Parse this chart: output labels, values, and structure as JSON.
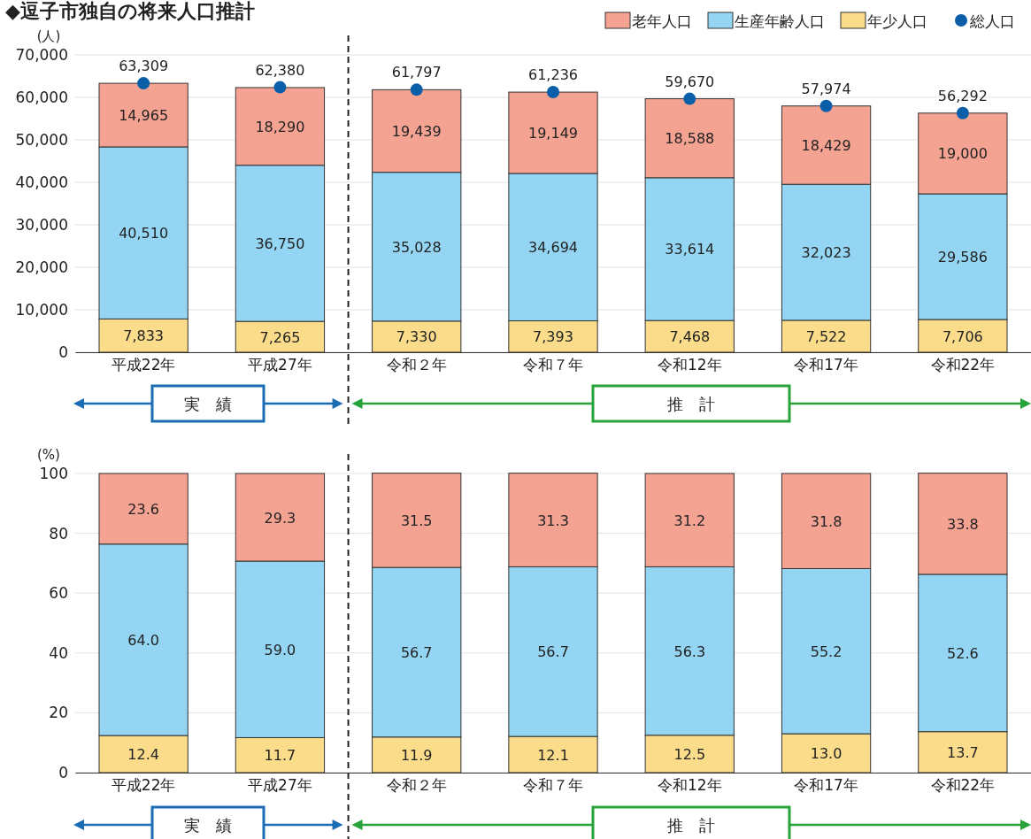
{
  "chart_data": [
    {
      "type": "bar",
      "title": "◆逗子市独自の将来人口推計",
      "ylabel": "(人)",
      "stacked": true,
      "grid": "y",
      "legend": "top right",
      "categories": [
        "平成22年",
        "平成27年",
        "令和２年",
        "令和７年",
        "令和12年",
        "令和17年",
        "令和22年"
      ],
      "ylim": [
        0,
        70000
      ],
      "yticks": [
        0,
        {
          "value": 10000,
          "label": "10,000"
        },
        {
          "value": 20000,
          "label": "20,000"
        },
        {
          "value": 30000,
          "label": "30,000"
        },
        {
          "value": 40000,
          "label": "40,000"
        },
        {
          "value": 50000,
          "label": "50,000"
        },
        {
          "value": 60000,
          "label": "60,000"
        },
        {
          "value": 70000,
          "label": "70,000"
        }
      ],
      "series": [
        {
          "name": "年少人口",
          "color": "#fbdc8a",
          "values": [
            7833,
            7265,
            7330,
            7393,
            7468,
            7522,
            7706
          ],
          "value_labels": [
            "7,833",
            "7,265",
            "7,330",
            "7,393",
            "7,468",
            "7,522",
            "7,706"
          ]
        },
        {
          "name": "生産年齢人口",
          "color": "#93d5f2",
          "values": [
            40510,
            36750,
            35028,
            34694,
            33614,
            32023,
            29586
          ],
          "value_labels": [
            "40,510",
            "36,750",
            "35,028",
            "34,694",
            "33,614",
            "32,023",
            "29,586"
          ]
        },
        {
          "name": "老年人口",
          "color": "#f4a393",
          "values": [
            14965,
            18290,
            19439,
            19149,
            18588,
            18429,
            19000
          ],
          "value_labels": [
            "14,965",
            "18,290",
            "19,439",
            "19,149",
            "18,588",
            "18,429",
            "19,000"
          ]
        },
        {
          "name": "総人口",
          "type": "scatter",
          "marker": "circle",
          "color": "#0b5ea8",
          "x": [
            "平成22年",
            "平成27年",
            "令和２年",
            "令和７年",
            "令和12年",
            "令和17年",
            "令和22年"
          ],
          "values": [
            63309,
            62380,
            61797,
            61236,
            59670,
            57974,
            56292
          ],
          "value_labels": [
            "63,309",
            "62,380",
            "61,797",
            "61,236",
            "59,670",
            "57,974",
            "56,292"
          ]
        }
      ],
      "annotations": [
        "実　績",
        "推　計"
      ]
    },
    {
      "type": "bar",
      "ylabel": "(%)",
      "stacked": true,
      "grid": "y",
      "categories": [
        "平成22年",
        "平成27年",
        "令和２年",
        "令和７年",
        "令和12年",
        "令和17年",
        "令和22年"
      ],
      "ylim": [
        0,
        100
      ],
      "yticks": [
        0,
        20,
        40,
        60,
        80,
        100
      ],
      "series": [
        {
          "color": "#fbdc8a",
          "values": [
            12.4,
            11.7,
            11.9,
            12.1,
            12.5,
            13.0,
            13.7
          ],
          "value_labels": [
            "12.4",
            "11.7",
            "11.9",
            "12.1",
            "12.5",
            "13.0",
            "13.7"
          ]
        },
        {
          "color": "#93d5f2",
          "values": [
            64.0,
            59.0,
            56.7,
            56.7,
            56.3,
            55.2,
            52.6
          ],
          "value_labels": [
            "64.0",
            "59.0",
            "56.7",
            "56.7",
            "56.3",
            "55.2",
            "52.6"
          ]
        },
        {
          "color": "#f4a393",
          "values": [
            23.6,
            29.3,
            31.5,
            31.3,
            31.2,
            31.8,
            33.8
          ],
          "value_labels": [
            "23.6",
            "29.3",
            "31.5",
            "31.3",
            "31.2",
            "31.8",
            "33.8"
          ]
        }
      ],
      "annotations": [
        "実　績",
        "推　計"
      ]
    }
  ]
}
